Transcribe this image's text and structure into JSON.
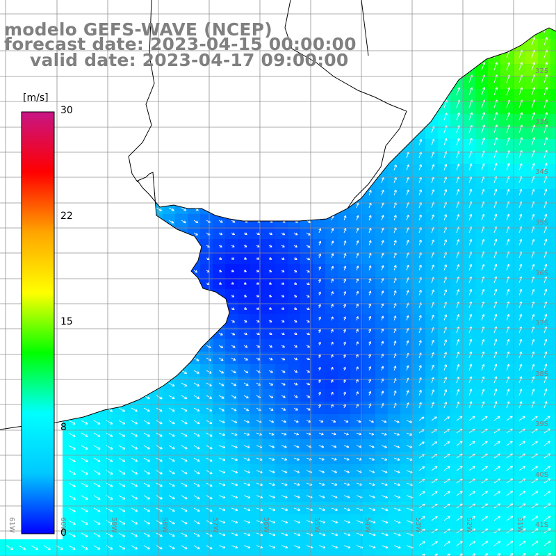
{
  "header": {
    "line1": "modelo GEFS-WAVE (NCEP)",
    "line2": "forecast date: 2023-04-15 00:00:00",
    "line3": "valid date: 2023-04-17 09:00:00"
  },
  "colorbar": {
    "unit": "[m/s]",
    "ticks": [
      "30",
      "22",
      "15",
      "8",
      "0"
    ],
    "colors": [
      "#0000ff",
      "#00c8ff",
      "#00ffff",
      "#00ff00",
      "#ffff00",
      "#ffa500",
      "#ff0000",
      "#c71585"
    ]
  },
  "map": {
    "land_color": "#ffffff",
    "grid_color": "#999999",
    "coastline_color": "#000000",
    "arrow_color": "#ffffff",
    "lat_labels": [
      "32S",
      "33S",
      "34S",
      "35S",
      "36S",
      "37S",
      "38S",
      "39S",
      "40S",
      "41S"
    ],
    "lon_labels": [
      "61W",
      "60W",
      "59W",
      "58W",
      "57W",
      "56W",
      "55W",
      "54W",
      "53W",
      "52W",
      "51W"
    ]
  }
}
